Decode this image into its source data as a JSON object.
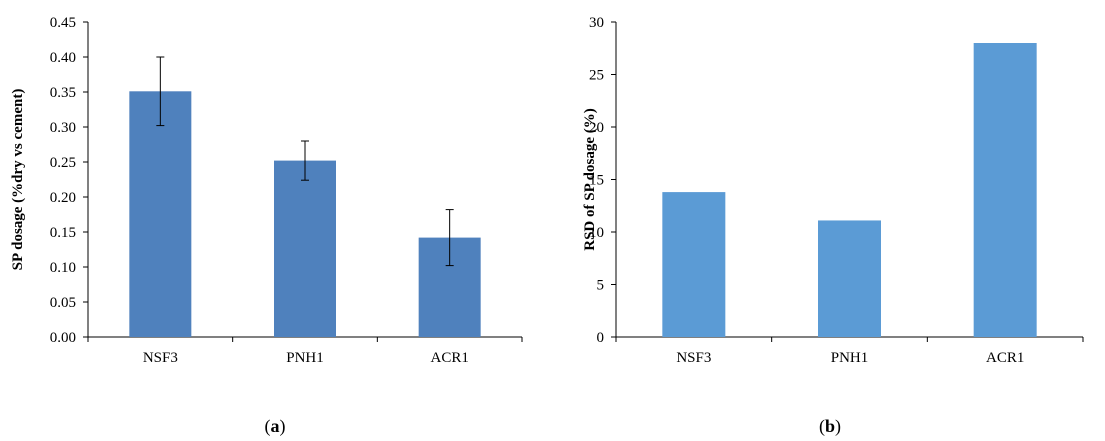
{
  "chart_data": [
    {
      "panel_label": "(a)",
      "panel_letter": "a",
      "type": "bar",
      "categories": [
        "NSF3",
        "PNH1",
        "ACR1"
      ],
      "values": [
        0.351,
        0.252,
        0.142
      ],
      "error": [
        0.049,
        0.028,
        0.04
      ],
      "ylabel": "SP dosage (%dry vs cement)",
      "xlabel": "",
      "ylim": [
        0,
        0.45
      ],
      "yticks": [
        "0.00",
        "0.05",
        "0.10",
        "0.15",
        "0.20",
        "0.25",
        "0.30",
        "0.35",
        "0.40",
        "0.45"
      ],
      "bar_color": "#4F81BD",
      "grid": false,
      "legend": "none"
    },
    {
      "panel_label": "(b)",
      "panel_letter": "b",
      "type": "bar",
      "categories": [
        "NSF3",
        "PNH1",
        "ACR1"
      ],
      "values": [
        13.8,
        11.1,
        28.0
      ],
      "ylabel": "RSD of SP dosage (%)",
      "xlabel": "",
      "ylim": [
        0,
        30
      ],
      "yticks": [
        "0",
        "5",
        "10",
        "15",
        "20",
        "25",
        "30"
      ],
      "bar_color": "#5B9BD5",
      "grid": false,
      "legend": "none"
    }
  ]
}
